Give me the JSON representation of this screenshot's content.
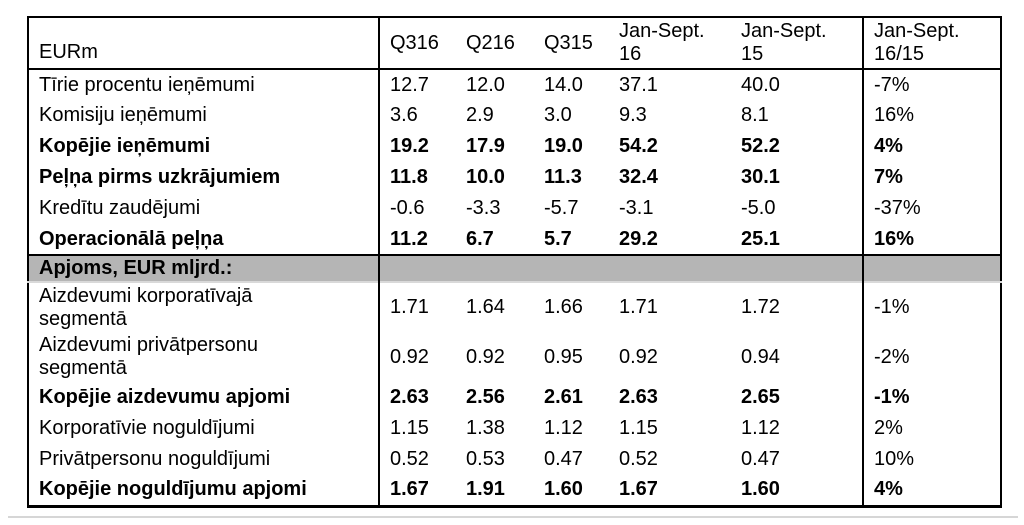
{
  "table": {
    "colors": {
      "page_bg": "#ffffff",
      "border": "#000000",
      "text": "#000000",
      "section_row_bg": "#b5b5b5"
    },
    "header": [
      "EURm",
      "Q316",
      "Q216",
      "Q315",
      "Jan-Sept.\n16",
      "Jan-Sept.\n15",
      "Jan-Sept.\n16/15"
    ],
    "rows": [
      {
        "label": "Tīrie procentu ieņēmumi",
        "values": [
          "12.7",
          "12.0",
          "14.0",
          "37.1",
          "40.0",
          "-7%"
        ],
        "bold": false,
        "type": "data"
      },
      {
        "label": "Komisiju ieņēmumi",
        "values": [
          "3.6",
          "2.9",
          "3.0",
          "9.3",
          "8.1",
          "16%"
        ],
        "bold": false,
        "type": "data"
      },
      {
        "label": "Kopējie ieņēmumi",
        "values": [
          "19.2",
          "17.9",
          "19.0",
          "54.2",
          "52.2",
          "4%"
        ],
        "bold": true,
        "type": "data"
      },
      {
        "label": "Peļņa pirms uzkrājumiem",
        "values": [
          "11.8",
          "10.0",
          "11.3",
          "32.4",
          "30.1",
          "7%"
        ],
        "bold": true,
        "type": "data"
      },
      {
        "label": "Kredītu zaudējumi",
        "values": [
          "-0.6",
          "-3.3",
          "-5.7",
          "-3.1",
          "-5.0",
          "-37%"
        ],
        "bold": false,
        "type": "data"
      },
      {
        "label": "Operacionālā peļņa",
        "values": [
          "11.2",
          "6.7",
          "5.7",
          "29.2",
          "25.1",
          "16%"
        ],
        "bold": true,
        "type": "data"
      },
      {
        "label": "Apjoms, EUR mljrd.:",
        "values": [
          "",
          "",
          "",
          "",
          "",
          ""
        ],
        "bold": true,
        "type": "section"
      },
      {
        "label": "Aizdevumi korporatīvajā\nsegmentā",
        "values": [
          "1.71",
          "1.64",
          "1.66",
          "1.71",
          "1.72",
          "-1%"
        ],
        "bold": false,
        "type": "data",
        "twoline": true
      },
      {
        "label": "Aizdevumi privātpersonu\nsegmentā",
        "values": [
          "0.92",
          "0.92",
          "0.95",
          "0.92",
          "0.94",
          "-2%"
        ],
        "bold": false,
        "type": "data",
        "twoline": true
      },
      {
        "label": "Kopējie aizdevumu apjomi",
        "values": [
          "2.63",
          "2.56",
          "2.61",
          "2.63",
          "2.65",
          "-1%"
        ],
        "bold": true,
        "type": "data"
      },
      {
        "label": "Korporatīvie noguldījumi",
        "values": [
          "1.15",
          "1.38",
          "1.12",
          "1.15",
          "1.12",
          "2%"
        ],
        "bold": false,
        "type": "data"
      },
      {
        "label": "Privātpersonu noguldījumi",
        "values": [
          "0.52",
          "0.53",
          "0.47",
          "0.52",
          "0.47",
          "10%"
        ],
        "bold": false,
        "type": "data"
      },
      {
        "label": "Kopējie noguldījumu apjomi",
        "values": [
          "1.67",
          "1.91",
          "1.60",
          "1.67",
          "1.60",
          "4%"
        ],
        "bold": true,
        "type": "data"
      }
    ]
  }
}
